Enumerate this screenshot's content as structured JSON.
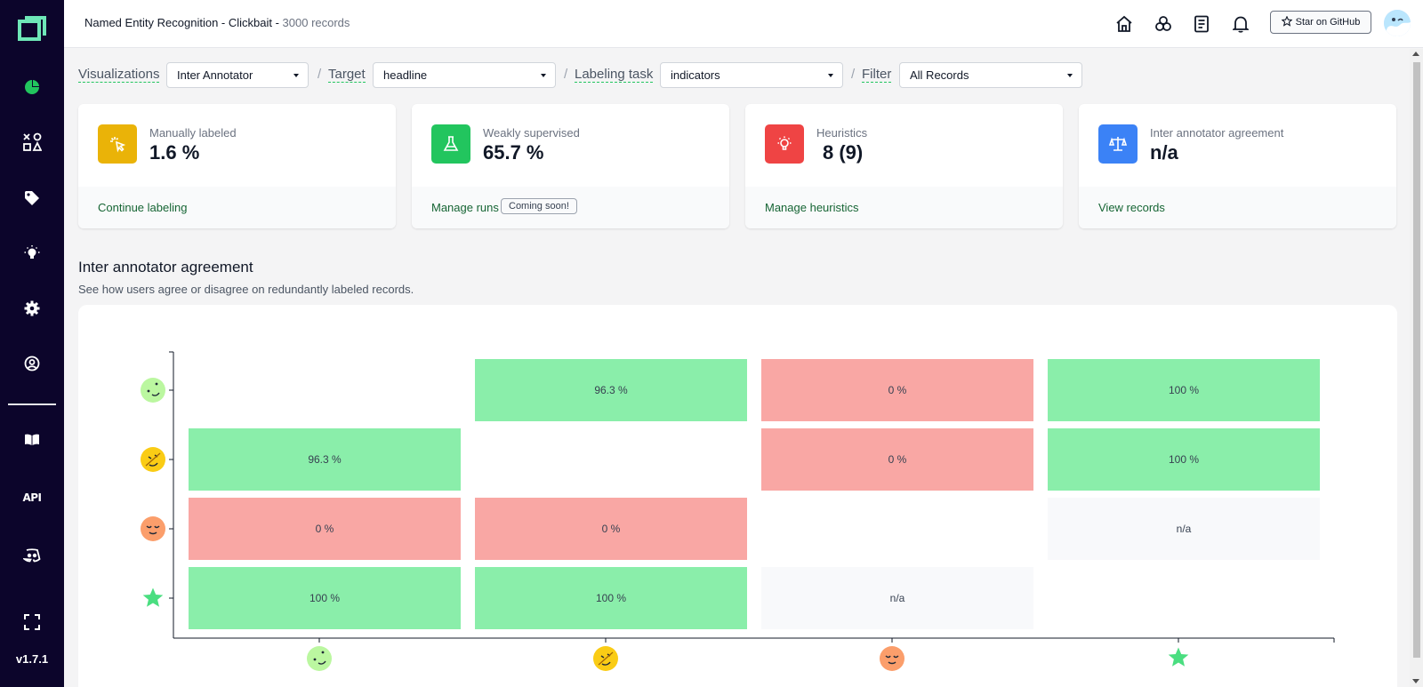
{
  "app": {
    "version": "v1.7.1",
    "project_title": "Named Entity Recognition - Clickbait - ",
    "record_count": "3000 records",
    "github_label": "Star on GitHub"
  },
  "sidebar": {
    "items": [
      {
        "name": "overview",
        "icon": "pie-chart-icon"
      },
      {
        "name": "data-browser",
        "icon": "shapes-icon"
      },
      {
        "name": "labeling",
        "icon": "tag-icon"
      },
      {
        "name": "heuristics",
        "icon": "lightbulb-icon"
      },
      {
        "name": "settings",
        "icon": "gear-icon"
      },
      {
        "name": "admin",
        "icon": "user-circle-icon"
      },
      {
        "name": "docs",
        "icon": "book-icon"
      },
      {
        "name": "api",
        "label": "API"
      },
      {
        "name": "discord",
        "icon": "discord-icon"
      },
      {
        "name": "fullscreen",
        "icon": "fullscreen-icon"
      }
    ]
  },
  "filters": {
    "visualizations": {
      "label": "Visualizations",
      "value": "Inter Annotator"
    },
    "target": {
      "label": "Target",
      "value": "headline"
    },
    "labeling_task": {
      "label": "Labeling task",
      "value": "indicators"
    },
    "filter": {
      "label": "Filter",
      "value": "All Records"
    }
  },
  "stats": [
    {
      "label": "Manually labeled",
      "value": "1.6 %",
      "link": "Continue labeling",
      "color": "#eab308"
    },
    {
      "label": "Weakly supervised",
      "value": "65.7 %",
      "link": "Manage runs",
      "badge": "Coming soon!",
      "color": "#22c55e"
    },
    {
      "label": "Heuristics",
      "value": "8 (9)",
      "link": "Manage heuristics",
      "color": "#ef4444"
    },
    {
      "label": "Inter annotator agreement",
      "value": "n/a",
      "link": "View records",
      "color": "#3b82f6"
    }
  ],
  "section": {
    "title": "Inter annotator agreement",
    "subtitle": "See how users agree or disagree on redundantly labeled records."
  },
  "chart_data": {
    "type": "heatmap",
    "annotators": [
      "green-face-avatar",
      "yellow-face-avatar",
      "orange-face-avatar",
      "gold-star-avatar"
    ],
    "matrix": [
      [
        null,
        "96.3 %",
        "0 %",
        "100 %"
      ],
      [
        "96.3 %",
        null,
        "0 %",
        "100 %"
      ],
      [
        "0 %",
        "0 %",
        null,
        "n/a"
      ],
      [
        "100 %",
        "100 %",
        "n/a",
        null
      ]
    ],
    "colors": {
      "high": "#8aeeaa",
      "low": "#f9a7a4",
      "na": "#f8f9fb"
    }
  }
}
